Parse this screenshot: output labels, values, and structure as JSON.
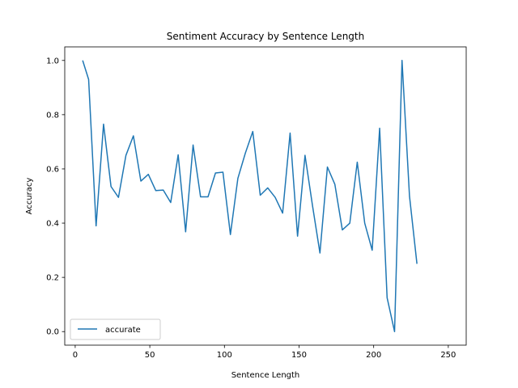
{
  "chart_data": {
    "type": "line",
    "title": "Sentiment Accuracy by Sentence Length",
    "xlabel": "Sentence Length",
    "ylabel": "Accuracy",
    "xlim": [
      -7,
      262
    ],
    "ylim": [
      -0.05,
      1.05
    ],
    "xticks": [
      0,
      50,
      100,
      150,
      200,
      250
    ],
    "yticks": [
      0.0,
      0.2,
      0.4,
      0.6,
      0.8,
      1.0
    ],
    "xtick_labels": [
      "0",
      "50",
      "100",
      "150",
      "200",
      "250"
    ],
    "ytick_labels": [
      "0.0",
      "0.2",
      "0.4",
      "0.6",
      "0.8",
      "1.0"
    ],
    "grid": false,
    "legend_position": "lower-left",
    "series": [
      {
        "name": "accurate",
        "color": "#1f77b4",
        "x": [
          5,
          9,
          14,
          19,
          24,
          29,
          34,
          39,
          44,
          49,
          54,
          59,
          64,
          69,
          74,
          79,
          84,
          89,
          94,
          99,
          104,
          109,
          114,
          119,
          124,
          129,
          134,
          139,
          144,
          149,
          154,
          159,
          164,
          169,
          174,
          179,
          184,
          189,
          194,
          199,
          204,
          209,
          214,
          219,
          224,
          229
        ],
        "y": [
          1.0,
          0.93,
          0.39,
          0.765,
          0.535,
          0.495,
          0.65,
          0.722,
          0.555,
          0.58,
          0.52,
          0.522,
          0.476,
          0.652,
          0.368,
          0.688,
          0.497,
          0.497,
          0.585,
          0.588,
          0.358,
          0.565,
          0.658,
          0.738,
          0.503,
          0.53,
          0.495,
          0.437,
          0.732,
          0.352,
          0.65,
          0.465,
          0.29,
          0.607,
          0.543,
          0.375,
          0.4,
          0.625,
          0.4,
          0.3,
          0.75,
          0.125,
          0.0,
          1.0,
          0.5,
          0.25
        ]
      }
    ]
  }
}
